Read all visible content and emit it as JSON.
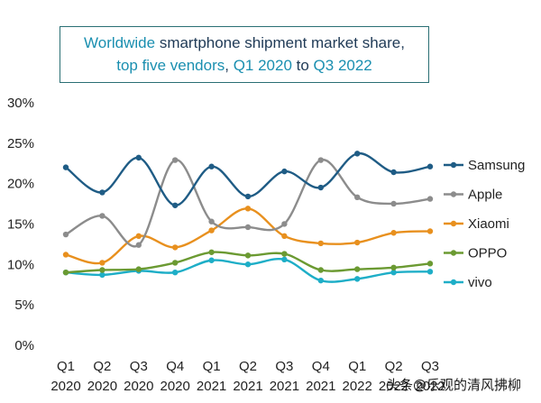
{
  "title": {
    "line1_a": "Worldwide ",
    "line1_b": "smartphone shipment market share",
    "line1_c": ",",
    "line2_a": "top five vendors",
    "line2_b": ", ",
    "line2_c": "Q1 2020",
    "line2_d": " to ",
    "line2_e": "Q3 2022"
  },
  "watermark": "头条@乐观的清风拂柳",
  "chart_data": {
    "type": "line",
    "title": "Worldwide smartphone shipment market share, top five vendors, Q1 2020 to Q3 2022",
    "categories": [
      [
        "Q1",
        "2020"
      ],
      [
        "Q2",
        "2020"
      ],
      [
        "Q3",
        "2020"
      ],
      [
        "Q4",
        "2020"
      ],
      [
        "Q1",
        "2021"
      ],
      [
        "Q2",
        "2021"
      ],
      [
        "Q3",
        "2021"
      ],
      [
        "Q4",
        "2021"
      ],
      [
        "Q1",
        "2022"
      ],
      [
        "Q2",
        "2022"
      ],
      [
        "Q3",
        "2022"
      ]
    ],
    "ylim": [
      0,
      30
    ],
    "yticks": [
      0,
      5,
      10,
      15,
      20,
      25,
      30
    ],
    "ytick_labels": [
      "0%",
      "5%",
      "10%",
      "15%",
      "20%",
      "25%",
      "30%"
    ],
    "grid": false,
    "legend_placement": "right",
    "smooth": true,
    "series": [
      {
        "name": "Samsung",
        "color": "#1f5c85",
        "values": [
          21.9,
          18.8,
          23.1,
          17.2,
          22.0,
          18.3,
          21.4,
          19.4,
          23.6,
          21.3,
          22.0
        ]
      },
      {
        "name": "Apple",
        "color": "#8c8c8c",
        "values": [
          13.6,
          15.9,
          12.3,
          22.8,
          15.2,
          14.5,
          14.9,
          22.8,
          18.2,
          17.4,
          18.0
        ]
      },
      {
        "name": "Xiaomi",
        "color": "#e8901e",
        "values": [
          11.1,
          10.1,
          13.4,
          12.0,
          14.1,
          16.8,
          13.4,
          12.5,
          12.6,
          13.8,
          14.0
        ]
      },
      {
        "name": "OPPO",
        "color": "#6b9a32",
        "values": [
          8.9,
          9.2,
          9.3,
          10.1,
          11.4,
          11.0,
          11.2,
          9.2,
          9.3,
          9.5,
          10.0
        ]
      },
      {
        "name": "vivo",
        "color": "#1eaec7",
        "values": [
          8.9,
          8.6,
          9.1,
          8.9,
          10.4,
          9.9,
          10.5,
          7.9,
          8.1,
          8.9,
          9.0
        ]
      }
    ]
  }
}
